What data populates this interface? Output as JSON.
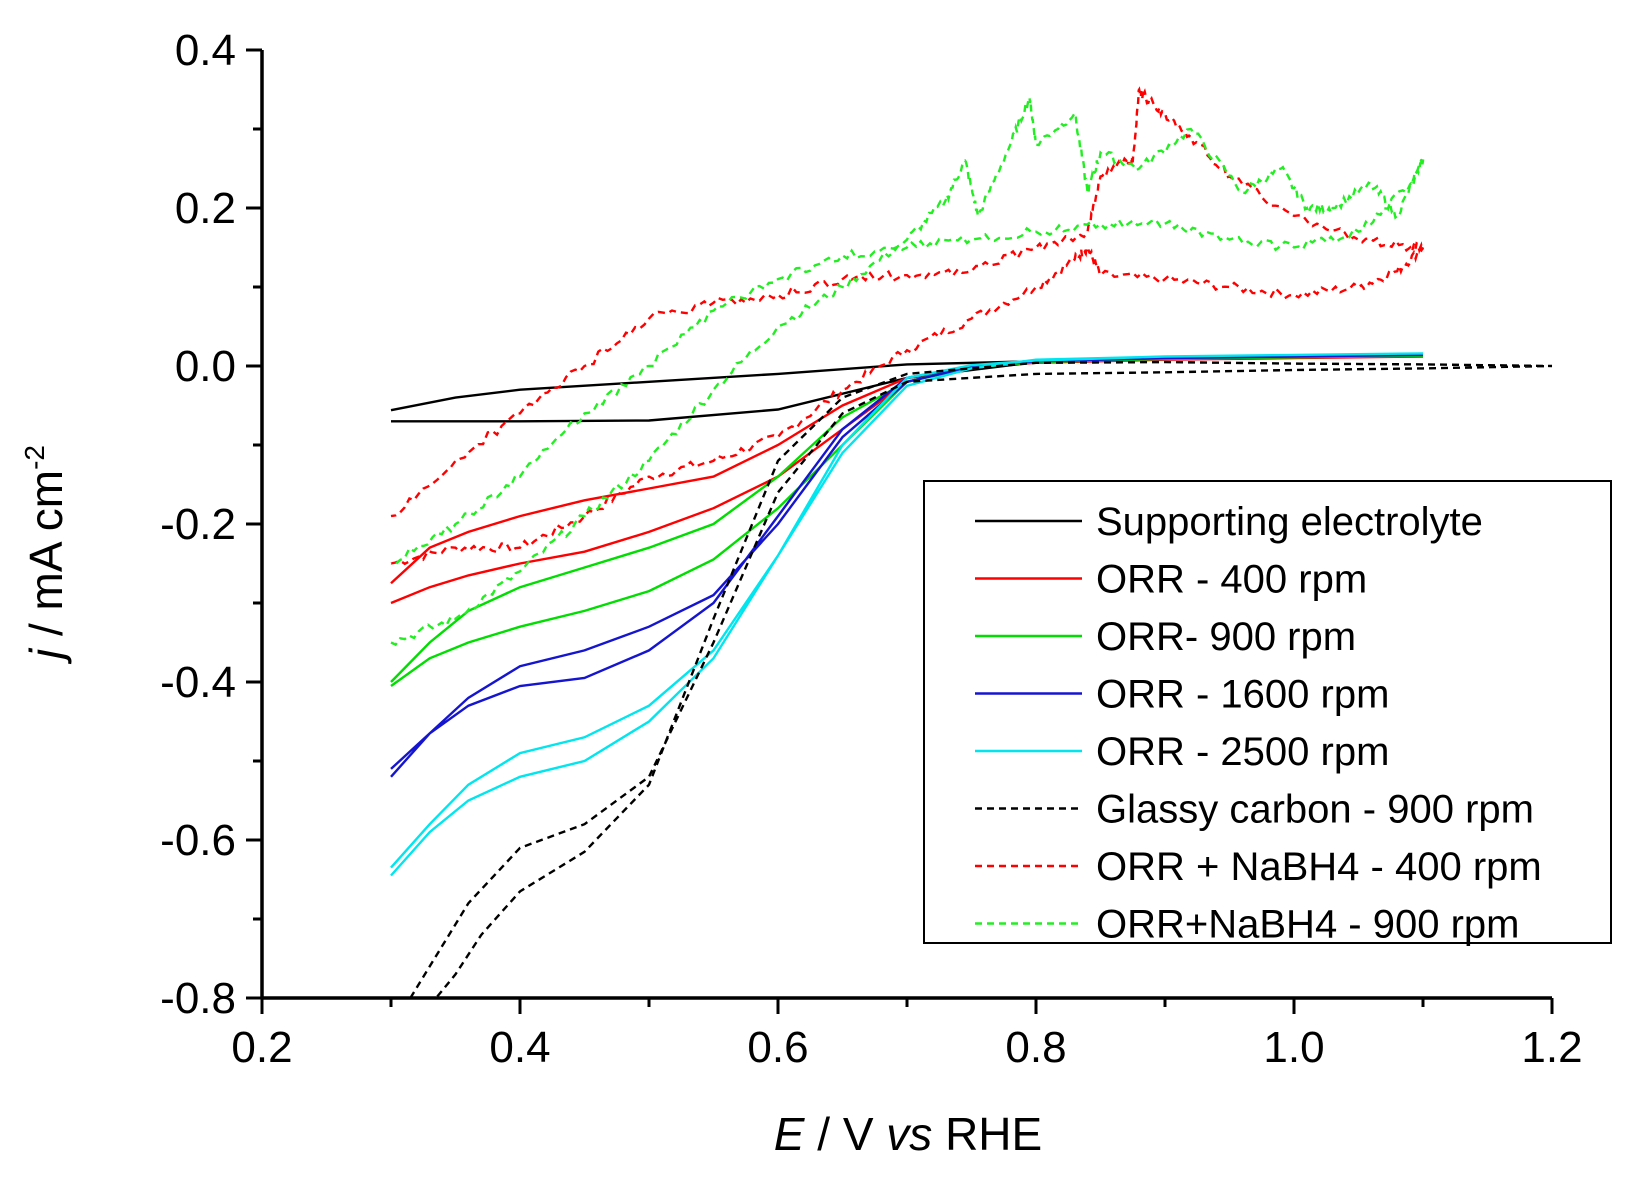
{
  "chart_data": {
    "type": "line",
    "xlabel": {
      "italic": "E",
      "rest1": " / V ",
      "italic2": "vs",
      "rest2": " RHE"
    },
    "ylabel": {
      "italic": "j",
      "rest": " / mA cm",
      "sup": "-2"
    },
    "xlim": [
      0.2,
      1.2
    ],
    "ylim": [
      -0.8,
      0.4
    ],
    "xticks": [
      "0.2",
      "0.4",
      "0.6",
      "0.8",
      "1.0",
      "1.2"
    ],
    "yticks": [
      "-0.8",
      "-0.6",
      "-0.4",
      "-0.2",
      "0.0",
      "0.2",
      "0.4"
    ],
    "legend_position": "lower-right",
    "series": [
      {
        "name": "Supporting electrolyte",
        "color": "#000000",
        "dash": "solid",
        "noise": 0,
        "x": [
          0.3,
          0.35,
          0.4,
          0.5,
          0.6,
          0.7,
          0.8,
          0.9,
          1.0,
          1.1,
          1.0,
          0.9,
          0.8,
          0.7,
          0.6,
          0.5,
          0.4,
          0.35,
          0.3
        ],
        "y": [
          -0.07,
          -0.07,
          -0.07,
          -0.069,
          -0.055,
          -0.015,
          0.005,
          0.01,
          0.012,
          0.015,
          0.011,
          0.009,
          0.006,
          0.002,
          -0.01,
          -0.02,
          -0.03,
          -0.04,
          -0.056
        ]
      },
      {
        "name": "ORR - 400 rpm",
        "color": "#ff0000",
        "dash": "solid",
        "noise": 0,
        "x": [
          0.3,
          0.33,
          0.36,
          0.4,
          0.45,
          0.5,
          0.55,
          0.6,
          0.65,
          0.7,
          0.75,
          0.8,
          0.9,
          1.0,
          1.1,
          1.0,
          0.9,
          0.8,
          0.75,
          0.7,
          0.65,
          0.6,
          0.55,
          0.5,
          0.45,
          0.4,
          0.36,
          0.33,
          0.3
        ],
        "y": [
          -0.3,
          -0.28,
          -0.265,
          -0.25,
          -0.235,
          -0.21,
          -0.18,
          -0.14,
          -0.08,
          -0.02,
          0.0,
          0.005,
          0.008,
          0.01,
          0.012,
          0.01,
          0.008,
          0.004,
          -0.001,
          -0.015,
          -0.05,
          -0.1,
          -0.14,
          -0.155,
          -0.17,
          -0.19,
          -0.21,
          -0.23,
          -0.275
        ]
      },
      {
        "name": "ORR- 900 rpm",
        "color": "#00dd00",
        "dash": "solid",
        "noise": 0,
        "x": [
          0.3,
          0.33,
          0.36,
          0.4,
          0.45,
          0.5,
          0.55,
          0.6,
          0.65,
          0.7,
          0.75,
          0.8,
          0.9,
          1.0,
          1.1,
          1.0,
          0.9,
          0.8,
          0.75,
          0.7,
          0.65,
          0.6,
          0.55,
          0.5,
          0.45,
          0.4,
          0.36,
          0.33,
          0.3
        ],
        "y": [
          -0.405,
          -0.37,
          -0.35,
          -0.33,
          -0.31,
          -0.285,
          -0.245,
          -0.18,
          -0.1,
          -0.02,
          0.0,
          0.006,
          0.009,
          0.011,
          0.013,
          0.011,
          0.009,
          0.005,
          -0.002,
          -0.02,
          -0.065,
          -0.14,
          -0.2,
          -0.23,
          -0.255,
          -0.28,
          -0.31,
          -0.35,
          -0.4
        ]
      },
      {
        "name": "ORR - 1600 rpm",
        "color": "#1515d0",
        "dash": "solid",
        "noise": 0,
        "x": [
          0.3,
          0.33,
          0.36,
          0.4,
          0.45,
          0.5,
          0.55,
          0.6,
          0.65,
          0.7,
          0.75,
          0.8,
          0.9,
          1.0,
          1.1,
          1.0,
          0.9,
          0.8,
          0.75,
          0.7,
          0.65,
          0.6,
          0.55,
          0.5,
          0.45,
          0.4,
          0.36,
          0.33,
          0.3
        ],
        "y": [
          -0.52,
          -0.465,
          -0.43,
          -0.405,
          -0.395,
          -0.36,
          -0.3,
          -0.19,
          -0.08,
          -0.015,
          0.0,
          0.007,
          0.01,
          0.012,
          0.014,
          0.012,
          0.01,
          0.006,
          -0.001,
          -0.02,
          -0.09,
          -0.2,
          -0.29,
          -0.33,
          -0.36,
          -0.38,
          -0.42,
          -0.465,
          -0.51
        ]
      },
      {
        "name": "ORR - 2500 rpm",
        "color": "#00e5ee",
        "dash": "solid",
        "noise": 0,
        "x": [
          0.3,
          0.33,
          0.36,
          0.4,
          0.45,
          0.5,
          0.55,
          0.6,
          0.65,
          0.7,
          0.75,
          0.8,
          0.9,
          1.0,
          1.1,
          1.0,
          0.9,
          0.8,
          0.75,
          0.7,
          0.65,
          0.6,
          0.55,
          0.5,
          0.45,
          0.4,
          0.36,
          0.33,
          0.3
        ],
        "y": [
          -0.645,
          -0.59,
          -0.55,
          -0.52,
          -0.5,
          -0.45,
          -0.37,
          -0.24,
          -0.11,
          -0.025,
          -0.003,
          0.008,
          0.012,
          0.014,
          0.016,
          0.014,
          0.012,
          0.007,
          0.001,
          -0.015,
          -0.1,
          -0.24,
          -0.36,
          -0.43,
          -0.47,
          -0.49,
          -0.53,
          -0.58,
          -0.635
        ]
      },
      {
        "name": "Glassy carbon - 900 rpm",
        "color": "#000000",
        "dash": "dashed",
        "noise": 0,
        "x": [
          0.315,
          0.33,
          0.36,
          0.4,
          0.45,
          0.5,
          0.55,
          0.6,
          0.65,
          0.7,
          0.8,
          0.9,
          1.0,
          1.1,
          1.2,
          1.1,
          1.0,
          0.9,
          0.8,
          0.7,
          0.65,
          0.6,
          0.55,
          0.5,
          0.45,
          0.4,
          0.37,
          0.35,
          0.335
        ],
        "y": [
          -0.8,
          -0.76,
          -0.68,
          -0.61,
          -0.58,
          -0.52,
          -0.35,
          -0.16,
          -0.06,
          -0.02,
          -0.01,
          -0.008,
          -0.005,
          -0.003,
          0.0,
          0.002,
          0.003,
          0.005,
          0.004,
          -0.01,
          -0.04,
          -0.12,
          -0.32,
          -0.53,
          -0.615,
          -0.665,
          -0.72,
          -0.77,
          -0.8
        ]
      },
      {
        "name": "ORR + NaBH4 - 400 rpm",
        "color": "#ff0000",
        "dash": "dashed",
        "noise": 0.012,
        "x": [
          0.3,
          0.35,
          0.4,
          0.45,
          0.5,
          0.55,
          0.6,
          0.65,
          0.7,
          0.75,
          0.8,
          0.83,
          0.84,
          0.85,
          0.9,
          0.95,
          1.0,
          1.05,
          1.08,
          1.1,
          1.09,
          1.05,
          1.0,
          0.95,
          0.92,
          0.9,
          0.885,
          0.88,
          0.875,
          0.87,
          0.85,
          0.84,
          0.8,
          0.75,
          0.7,
          0.65,
          0.6,
          0.55,
          0.5,
          0.45,
          0.4,
          0.35,
          0.3
        ],
        "y": [
          -0.25,
          -0.23,
          -0.23,
          -0.19,
          -0.14,
          -0.12,
          -0.09,
          -0.03,
          0.02,
          0.06,
          0.1,
          0.135,
          0.15,
          0.115,
          0.11,
          0.1,
          0.09,
          0.1,
          0.12,
          0.15,
          0.15,
          0.16,
          0.19,
          0.24,
          0.29,
          0.32,
          0.34,
          0.35,
          0.26,
          0.26,
          0.24,
          0.17,
          0.15,
          0.12,
          0.115,
          0.11,
          0.09,
          0.08,
          0.06,
          0.0,
          -0.06,
          -0.12,
          -0.19
        ]
      },
      {
        "name": "ORR+NaBH4 - 900 rpm",
        "color": "#22ee22",
        "dash": "dashed",
        "noise": 0.012,
        "x": [
          0.3,
          0.35,
          0.4,
          0.45,
          0.5,
          0.55,
          0.6,
          0.65,
          0.7,
          0.73,
          0.745,
          0.755,
          0.78,
          0.795,
          0.8,
          0.83,
          0.84,
          0.85,
          0.88,
          0.92,
          0.96,
          0.99,
          1.01,
          1.03,
          1.06,
          1.08,
          1.1,
          1.09,
          1.05,
          1.0,
          0.95,
          0.9,
          0.85,
          0.8,
          0.75,
          0.7,
          0.65,
          0.6,
          0.55,
          0.5,
          0.45,
          0.4,
          0.35,
          0.3
        ],
        "y": [
          -0.35,
          -0.32,
          -0.26,
          -0.19,
          -0.12,
          -0.03,
          0.05,
          0.1,
          0.16,
          0.21,
          0.26,
          0.19,
          0.28,
          0.34,
          0.28,
          0.32,
          0.22,
          0.27,
          0.25,
          0.3,
          0.22,
          0.25,
          0.2,
          0.2,
          0.23,
          0.19,
          0.26,
          0.23,
          0.17,
          0.15,
          0.16,
          0.18,
          0.18,
          0.17,
          0.16,
          0.15,
          0.14,
          0.11,
          0.07,
          0.0,
          -0.06,
          -0.14,
          -0.2,
          -0.25
        ]
      }
    ]
  }
}
